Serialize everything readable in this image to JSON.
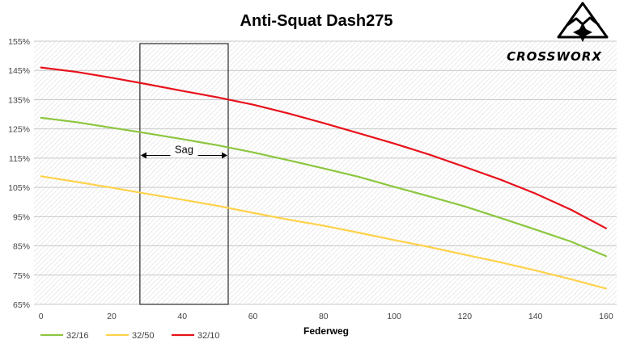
{
  "chart_data": {
    "type": "line",
    "title": "Anti-Squat Dash275",
    "xlabel": "Federweg",
    "ylabel": "",
    "x": [
      0,
      10,
      20,
      30,
      40,
      50,
      60,
      70,
      80,
      90,
      100,
      110,
      120,
      130,
      140,
      150,
      160
    ],
    "xlim": [
      -2,
      163
    ],
    "ylim": [
      65,
      155
    ],
    "xticks": [
      0,
      20,
      40,
      60,
      80,
      100,
      120,
      140,
      160
    ],
    "yticks": [
      65,
      75,
      85,
      95,
      105,
      115,
      125,
      135,
      145,
      155
    ],
    "ytick_suffix": "%",
    "grid": true,
    "legend_position": "bottom-left",
    "series": [
      {
        "name": "32/16",
        "color": "#8cc63f",
        "values": [
          128.8,
          127.3,
          125.4,
          123.5,
          121.5,
          119.4,
          117.0,
          114.3,
          111.5,
          108.6,
          105.2,
          101.9,
          98.5,
          94.6,
          90.6,
          86.5,
          81.5
        ]
      },
      {
        "name": "32/50",
        "color": "#ffd24a",
        "values": [
          108.8,
          106.9,
          104.9,
          102.8,
          100.8,
          98.7,
          96.3,
          94.0,
          91.9,
          89.5,
          87.0,
          84.6,
          82.0,
          79.4,
          76.6,
          73.6,
          70.4
        ]
      },
      {
        "name": "32/10",
        "color": "#e8111b",
        "values": [
          146.0,
          144.5,
          142.5,
          140.3,
          138.0,
          135.8,
          133.3,
          130.3,
          127.0,
          123.5,
          120.0,
          116.2,
          112.0,
          107.7,
          102.9,
          97.4,
          91.0
        ]
      }
    ],
    "annotations": [
      {
        "text": "Sag",
        "x_range": [
          28,
          53
        ],
        "y": 116.5
      }
    ]
  },
  "brand": {
    "name": "CROSSWORX"
  }
}
